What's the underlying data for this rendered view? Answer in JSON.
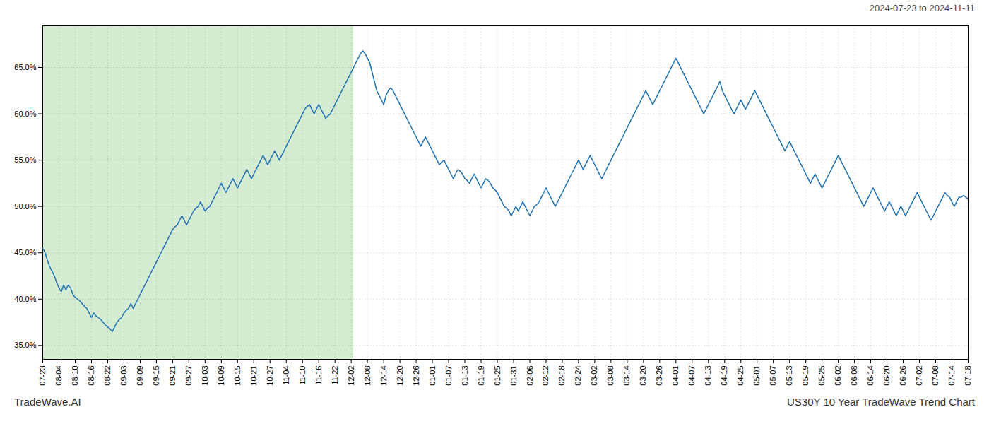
{
  "chart_data": {
    "type": "line",
    "title": "US30Y 10 Year TradeWave Trend Chart",
    "subtitle": "2024-07-23 to 2024-11-11",
    "annotations": [
      "TradeWave.AI"
    ],
    "color": "#2171b5",
    "grid": true,
    "ylim": [
      33.5,
      69.5
    ],
    "yticks": [
      {
        "value": 35.0,
        "label": "35.0%"
      },
      {
        "value": 40.0,
        "label": "40.0%"
      },
      {
        "value": 45.0,
        "label": "45.0%"
      },
      {
        "value": 50.0,
        "label": "50.0%"
      },
      {
        "value": 55.0,
        "label": "55.0%"
      },
      {
        "value": 60.0,
        "label": "60.0%"
      },
      {
        "value": 65.0,
        "label": "65.0%"
      }
    ],
    "highlight": {
      "from": 0,
      "to": 134,
      "color": "#d6ecd2"
    },
    "categories": [
      "07-23",
      null,
      null,
      null,
      null,
      null,
      null,
      "08-04",
      null,
      null,
      null,
      null,
      null,
      null,
      "08-10",
      null,
      null,
      null,
      null,
      null,
      null,
      "08-16",
      null,
      null,
      null,
      null,
      null,
      null,
      "08-22",
      null,
      null,
      null,
      null,
      null,
      null,
      "09-03",
      null,
      null,
      null,
      null,
      null,
      null,
      "09-09",
      null,
      null,
      null,
      null,
      null,
      null,
      "09-15",
      null,
      null,
      null,
      null,
      null,
      null,
      "09-21",
      null,
      null,
      null,
      null,
      null,
      null,
      "09-27",
      null,
      null,
      null,
      null,
      null,
      null,
      "10-03",
      null,
      null,
      null,
      null,
      null,
      null,
      "10-09",
      null,
      null,
      null,
      null,
      null,
      null,
      "10-15",
      null,
      null,
      null,
      null,
      null,
      null,
      "10-21",
      null,
      null,
      null,
      null,
      null,
      null,
      "10-27",
      null,
      null,
      null,
      null,
      null,
      null,
      "11-04",
      null,
      null,
      null,
      null,
      null,
      null,
      "11-10",
      null,
      null,
      null,
      null,
      null,
      null,
      "11-16",
      null,
      null,
      null,
      null,
      null,
      null,
      "11-22",
      null,
      null,
      null,
      null,
      null,
      null,
      "12-02",
      null,
      null,
      null,
      null,
      null,
      null,
      "12-08",
      null,
      null,
      null,
      null,
      null,
      null,
      "12-14",
      null,
      null,
      null,
      null,
      null,
      null,
      "12-20",
      null,
      null,
      null,
      null,
      null,
      null,
      "12-26",
      null,
      null,
      null,
      null,
      null,
      null,
      "01-01",
      null,
      null,
      null,
      null,
      null,
      null,
      "01-07",
      null,
      null,
      null,
      null,
      null,
      null,
      "01-13",
      null,
      null,
      null,
      null,
      null,
      null,
      "01-19",
      null,
      null,
      null,
      null,
      null,
      null,
      "01-25",
      null,
      null,
      null,
      null,
      null,
      null,
      "01-31",
      null,
      null,
      null,
      null,
      null,
      null,
      "02-06",
      null,
      null,
      null,
      null,
      null,
      null,
      "02-12",
      null,
      null,
      null,
      null,
      null,
      null,
      "02-18",
      null,
      null,
      null,
      null,
      null,
      null,
      "02-24",
      null,
      null,
      null,
      null,
      null,
      null,
      "03-02",
      null,
      null,
      null,
      null,
      null,
      null,
      "03-08",
      null,
      null,
      null,
      null,
      null,
      null,
      "03-14",
      null,
      null,
      null,
      null,
      null,
      null,
      "03-20",
      null,
      null,
      null,
      null,
      null,
      null,
      "03-26",
      null,
      null,
      null,
      null,
      null,
      null,
      "04-01",
      null,
      null,
      null,
      null,
      null,
      null,
      "04-07",
      null,
      null,
      null,
      null,
      null,
      null,
      "04-13",
      null,
      null,
      null,
      null,
      null,
      null,
      "04-19",
      null,
      null,
      null,
      null,
      null,
      null,
      "04-25",
      null,
      null,
      null,
      null,
      null,
      null,
      "05-01",
      null,
      null,
      null,
      null,
      null,
      null,
      "05-07",
      null,
      null,
      null,
      null,
      null,
      null,
      "05-13",
      null,
      null,
      null,
      null,
      null,
      null,
      "05-19",
      null,
      null,
      null,
      null,
      null,
      null,
      "05-25",
      null,
      null,
      null,
      null,
      null,
      null,
      "06-02",
      null,
      null,
      null,
      null,
      null,
      null,
      "06-08",
      null,
      null,
      null,
      null,
      null,
      null,
      "06-14",
      null,
      null,
      null,
      null,
      null,
      null,
      "06-20",
      null,
      null,
      null,
      null,
      null,
      null,
      "06-26",
      null,
      null,
      null,
      null,
      null,
      null,
      "07-02",
      null,
      null,
      null,
      null,
      null,
      null,
      "07-08",
      null,
      null,
      null,
      null,
      null,
      null,
      "07-14",
      null,
      null,
      null,
      null,
      null,
      null,
      "07-18"
    ],
    "values": [
      45.5,
      45.0,
      44.2,
      43.5,
      43.0,
      42.5,
      41.8,
      41.2,
      40.8,
      41.5,
      41.0,
      41.5,
      41.2,
      40.5,
      40.2,
      40.0,
      39.8,
      39.5,
      39.2,
      39.0,
      38.5,
      38.0,
      38.5,
      38.2,
      38.0,
      37.8,
      37.5,
      37.2,
      37.0,
      36.8,
      36.5,
      37.0,
      37.5,
      37.8,
      38.0,
      38.5,
      38.8,
      39.0,
      39.5,
      39.0,
      39.5,
      40.0,
      40.5,
      41.0,
      41.5,
      42.0,
      42.5,
      43.0,
      43.5,
      44.0,
      44.5,
      45.0,
      45.5,
      46.0,
      46.5,
      47.0,
      47.5,
      47.8,
      48.0,
      48.5,
      49.0,
      48.5,
      48.0,
      48.5,
      49.0,
      49.5,
      49.8,
      50.0,
      50.5,
      50.0,
      49.5,
      49.8,
      50.0,
      50.5,
      51.0,
      51.5,
      52.0,
      52.5,
      52.0,
      51.5,
      52.0,
      52.5,
      53.0,
      52.5,
      52.0,
      52.5,
      53.0,
      53.5,
      54.0,
      53.5,
      53.0,
      53.5,
      54.0,
      54.5,
      55.0,
      55.5,
      55.0,
      54.5,
      55.0,
      55.5,
      56.0,
      55.5,
      55.0,
      55.5,
      56.0,
      56.5,
      57.0,
      57.5,
      58.0,
      58.5,
      59.0,
      59.5,
      60.0,
      60.5,
      60.8,
      61.0,
      60.5,
      60.0,
      60.5,
      61.0,
      60.5,
      60.0,
      59.5,
      59.8,
      60.0,
      60.5,
      61.0,
      61.5,
      62.0,
      62.5,
      63.0,
      63.5,
      64.0,
      64.5,
      65.0,
      65.5,
      66.0,
      66.5,
      66.8,
      66.5,
      66.0,
      65.5,
      64.5,
      63.5,
      62.5,
      62.0,
      61.5,
      61.0,
      62.0,
      62.5,
      62.8,
      62.5,
      62.0,
      61.5,
      61.0,
      60.5,
      60.0,
      59.5,
      59.0,
      58.5,
      58.0,
      57.5,
      57.0,
      56.5,
      57.0,
      57.5,
      57.0,
      56.5,
      56.0,
      55.5,
      55.0,
      54.5,
      54.8,
      55.0,
      54.5,
      54.0,
      53.5,
      53.0,
      53.5,
      54.0,
      53.8,
      53.5,
      53.0,
      52.8,
      52.5,
      53.0,
      53.5,
      53.0,
      52.5,
      52.0,
      52.5,
      53.0,
      52.8,
      52.5,
      52.0,
      51.8,
      51.5,
      51.0,
      50.5,
      50.0,
      49.8,
      49.5,
      49.0,
      49.5,
      50.0,
      49.5,
      50.0,
      50.5,
      50.0,
      49.5,
      49.0,
      49.5,
      50.0,
      50.2,
      50.5,
      51.0,
      51.5,
      52.0,
      51.5,
      51.0,
      50.5,
      50.0,
      50.5,
      51.0,
      51.5,
      52.0,
      52.5,
      53.0,
      53.5,
      54.0,
      54.5,
      55.0,
      54.5,
      54.0,
      54.5,
      55.0,
      55.5,
      55.0,
      54.5,
      54.0,
      53.5,
      53.0,
      53.5,
      54.0,
      54.5,
      55.0,
      55.5,
      56.0,
      56.5,
      57.0,
      57.5,
      58.0,
      58.5,
      59.0,
      59.5,
      60.0,
      60.5,
      61.0,
      61.5,
      62.0,
      62.5,
      62.0,
      61.5,
      61.0,
      61.5,
      62.0,
      62.5,
      63.0,
      63.5,
      64.0,
      64.5,
      65.0,
      65.5,
      66.0,
      65.5,
      65.0,
      64.5,
      64.0,
      63.5,
      63.0,
      62.5,
      62.0,
      61.5,
      61.0,
      60.5,
      60.0,
      60.5,
      61.0,
      61.5,
      62.0,
      62.5,
      63.0,
      63.5,
      62.5,
      62.0,
      61.5,
      61.0,
      60.5,
      60.0,
      60.5,
      61.0,
      61.5,
      61.0,
      60.5,
      61.0,
      61.5,
      62.0,
      62.5,
      62.0,
      61.5,
      61.0,
      60.5,
      60.0,
      59.5,
      59.0,
      58.5,
      58.0,
      57.5,
      57.0,
      56.5,
      56.0,
      56.5,
      57.0,
      56.5,
      56.0,
      55.5,
      55.0,
      54.5,
      54.0,
      53.5,
      53.0,
      52.5,
      53.0,
      53.5,
      53.0,
      52.5,
      52.0,
      52.5,
      53.0,
      53.5,
      54.0,
      54.5,
      55.0,
      55.5,
      55.0,
      54.5,
      54.0,
      53.5,
      53.0,
      52.5,
      52.0,
      51.5,
      51.0,
      50.5,
      50.0,
      50.5,
      51.0,
      51.5,
      52.0,
      51.5,
      51.0,
      50.5,
      50.0,
      49.5,
      50.0,
      50.5,
      50.0,
      49.5,
      49.0,
      49.5,
      50.0,
      49.5,
      49.0,
      49.5,
      50.0,
      50.5,
      51.0,
      51.5,
      51.0,
      50.5,
      50.0,
      49.5,
      49.0,
      48.5,
      49.0,
      49.5,
      50.0,
      50.5,
      51.0,
      51.5,
      51.2,
      51.0,
      50.5,
      50.0,
      50.5,
      51.0,
      51.0,
      51.2,
      51.0,
      50.8
    ]
  }
}
